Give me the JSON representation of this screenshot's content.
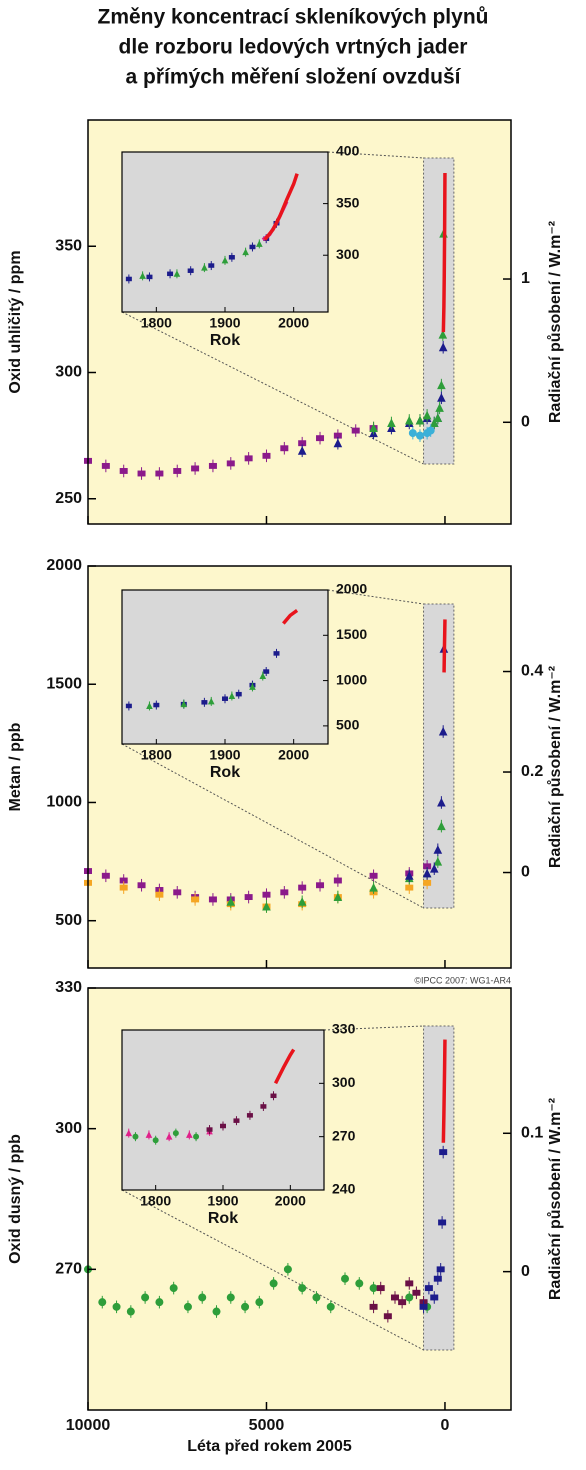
{
  "title": [
    "Změny koncentrací skleníkových plynů",
    "dle rozboru ledových vrtných jader",
    "a přímých měření složení ovzduší"
  ],
  "chart_data": [
    {
      "type": "scatter",
      "ylabel": "Oxid uhličitý  /  ppm",
      "y2label": "Radiační působení  /  W.m⁻²",
      "xlim": [
        10000,
        -1850
      ],
      "xticks": [
        10000,
        5000,
        0
      ],
      "ylim": [
        240,
        400
      ],
      "yticks": [
        250,
        300,
        350
      ],
      "y2lim": [
        -0.71,
        2.11
      ],
      "y2ticks": [
        0,
        1
      ],
      "series": [
        {
          "color": "#8b1a8b",
          "marker": "square",
          "x": [
            10000,
            9500,
            9000,
            8500,
            8000,
            7500,
            7000,
            6500,
            6000,
            5500,
            5000,
            4500,
            4000,
            3500,
            3000,
            2500,
            2000
          ],
          "values": [
            265,
            263,
            261,
            260,
            260,
            261,
            262,
            263,
            264,
            266,
            267,
            270,
            272,
            274,
            275,
            277,
            278
          ]
        },
        {
          "color": "#1c1c8c",
          "marker": "triangle",
          "x": [
            4000,
            3000,
            2000,
            1500,
            1000,
            700,
            500,
            300,
            200,
            100,
            50
          ],
          "values": [
            269,
            272,
            276,
            278,
            280,
            281,
            282,
            280,
            282,
            290,
            310
          ]
        },
        {
          "color": "#2e9e3a",
          "marker": "triangle",
          "x": [
            2000,
            1500,
            1000,
            700,
            500,
            300,
            200,
            150,
            100,
            60,
            40
          ],
          "values": [
            278,
            280,
            281,
            281,
            283,
            280,
            282,
            286,
            295,
            315,
            355
          ]
        },
        {
          "color": "#3ab0d8",
          "marker": "circle",
          "x": [
            900,
            700,
            500,
            400
          ],
          "values": [
            276,
            275,
            276,
            277
          ]
        },
        {
          "color": "#e8141c",
          "marker": "line",
          "x": [
            45,
            30,
            20,
            10,
            0
          ],
          "values": [
            316,
            326,
            338,
            355,
            379
          ]
        }
      ],
      "inset": {
        "xlabel": "Rok",
        "xlim": [
          1750,
          2050
        ],
        "xticks": [
          1800,
          1900,
          2000
        ],
        "ylim": [
          245,
          400
        ],
        "yticks": [
          300,
          350,
          400
        ],
        "series": [
          {
            "color": "#1c1c8c",
            "marker": "square",
            "x": [
              1760,
              1790,
              1820,
              1850,
              1880,
              1910,
              1940,
              1960,
              1975
            ],
            "values": [
              277,
              279,
              282,
              285,
              290,
              298,
              308,
              316,
              331
            ]
          },
          {
            "color": "#2e9e3a",
            "marker": "triangle",
            "x": [
              1780,
              1830,
              1870,
              1900,
              1930,
              1950
            ],
            "values": [
              280,
              282,
              288,
              295,
              303,
              311
            ]
          },
          {
            "color": "#e0208a",
            "marker": "line",
            "x": [
              1955,
              1965,
              1975,
              1985,
              1990
            ],
            "values": [
              315,
              320,
              331,
              345,
              352
            ]
          },
          {
            "color": "#e8141c",
            "marker": "line",
            "x": [
              1958,
              1970,
              1980,
              1990,
              2000,
              2005
            ],
            "values": [
              315,
              325,
              338,
              354,
              369,
              379
            ]
          }
        ]
      }
    },
    {
      "type": "scatter",
      "ylabel": "Metan  /  ppb",
      "y2label": "Radiační působení  /  W.m⁻²",
      "note": "©IPCC 2007: WG1-AR4",
      "xlim": [
        10000,
        -1850
      ],
      "xticks": [
        10000,
        5000,
        0
      ],
      "ylim": [
        300,
        2000
      ],
      "yticks": [
        500,
        1000,
        1500,
        2000
      ],
      "y2lim": [
        -0.19,
        0.61
      ],
      "y2ticks": [
        0,
        0.2,
        0.4
      ],
      "series": [
        {
          "color": "#8b1a8b",
          "marker": "square",
          "x": [
            10000,
            9500,
            9000,
            8500,
            8000,
            7500,
            7000,
            6500,
            6000,
            5500,
            5000,
            4500,
            4000,
            3500,
            3000,
            2000,
            1000,
            500
          ],
          "values": [
            710,
            690,
            670,
            650,
            630,
            620,
            600,
            590,
            590,
            600,
            610,
            620,
            640,
            650,
            670,
            690,
            700,
            730
          ]
        },
        {
          "color": "#f5a623",
          "marker": "square",
          "x": [
            10000,
            9000,
            8000,
            7000,
            6000,
            5000,
            4000,
            3000,
            2000,
            1000,
            500
          ],
          "values": [
            660,
            640,
            610,
            590,
            570,
            560,
            570,
            600,
            620,
            640,
            660
          ]
        },
        {
          "color": "#2e9e3a",
          "marker": "triangle",
          "x": [
            6000,
            5000,
            4000,
            3000,
            2000,
            1000,
            500,
            200,
            100
          ],
          "values": [
            580,
            560,
            580,
            600,
            640,
            680,
            700,
            750,
            900
          ]
        },
        {
          "color": "#1c1c8c",
          "marker": "triangle",
          "x": [
            1000,
            500,
            300,
            200,
            100,
            50,
            30
          ],
          "values": [
            690,
            700,
            720,
            800,
            1000,
            1300,
            1650
          ]
        },
        {
          "color": "#e8141c",
          "marker": "line",
          "x": [
            25,
            15,
            5,
            0
          ],
          "values": [
            1550,
            1650,
            1730,
            1774
          ]
        }
      ],
      "inset": {
        "xlabel": "Rok",
        "xlim": [
          1750,
          2050
        ],
        "xticks": [
          1800,
          1900,
          2000
        ],
        "ylim": [
          300,
          2000
        ],
        "yticks": [
          500,
          1000,
          1500,
          2000
        ],
        "series": [
          {
            "color": "#1c1c8c",
            "marker": "square",
            "x": [
              1760,
              1800,
              1840,
              1870,
              1900,
              1920,
              1940,
              1960,
              1975
            ],
            "values": [
              720,
              730,
              740,
              760,
              800,
              850,
              950,
              1100,
              1300
            ]
          },
          {
            "color": "#2e9e3a",
            "marker": "triangle",
            "x": [
              1790,
              1840,
              1880,
              1910,
              1940,
              1955
            ],
            "values": [
              720,
              740,
              770,
              830,
              930,
              1050
            ]
          },
          {
            "color": "#e8141c",
            "marker": "line",
            "x": [
              1985,
              1995,
              2005
            ],
            "values": [
              1630,
              1720,
              1774
            ]
          }
        ]
      }
    },
    {
      "type": "scatter",
      "ylabel": "Oxid dusný  /  ppb",
      "y2label": "Radiační působení  /  W.m⁻²",
      "xlabel": "Léta před rokem 2005",
      "xlim": [
        10000,
        -1850
      ],
      "xticks": [
        10000,
        5000,
        0
      ],
      "ylim": [
        240,
        330
      ],
      "yticks": [
        270,
        300,
        330
      ],
      "y2lim": [
        -0.1,
        0.205
      ],
      "y2ticks": [
        0,
        0.1
      ],
      "series": [
        {
          "color": "#2e9e3a",
          "marker": "circle",
          "x": [
            10000,
            9600,
            9200,
            8800,
            8400,
            8000,
            7600,
            7200,
            6800,
            6400,
            6000,
            5600,
            5200,
            4800,
            4400,
            4000,
            3600,
            3200,
            2800,
            2400,
            2000,
            1000,
            500
          ],
          "values": [
            270,
            263,
            262,
            261,
            264,
            263,
            266,
            262,
            264,
            261,
            264,
            262,
            263,
            267,
            270,
            266,
            264,
            262,
            268,
            267,
            266,
            264,
            262
          ]
        },
        {
          "color": "#6b1046",
          "marker": "square",
          "x": [
            2000,
            1800,
            1600,
            1400,
            1200,
            1000,
            800,
            600
          ],
          "values": [
            262,
            266,
            260,
            264,
            263,
            267,
            265,
            263
          ]
        },
        {
          "color": "#1c1c8c",
          "marker": "square",
          "x": [
            600,
            450,
            300,
            200,
            120,
            80,
            50
          ],
          "values": [
            262,
            266,
            264,
            268,
            270,
            280,
            295
          ]
        },
        {
          "color": "#e8141c",
          "marker": "line",
          "x": [
            45,
            30,
            20,
            10,
            0
          ],
          "values": [
            297,
            303,
            308,
            313,
            319
          ]
        }
      ],
      "inset": {
        "xlabel": "Rok",
        "xlim": [
          1750,
          2050
        ],
        "xticks": [
          1800,
          1900,
          2000
        ],
        "ylim": [
          240,
          330
        ],
        "yticks": [
          240,
          270,
          300,
          330
        ],
        "series": [
          {
            "color": "#e0208a",
            "marker": "triangle",
            "x": [
              1760,
              1790,
              1820,
              1850,
              1880
            ],
            "values": [
              272,
              271,
              270,
              271,
              273
            ]
          },
          {
            "color": "#2e9e3a",
            "marker": "circle",
            "x": [
              1770,
              1800,
              1830,
              1860
            ],
            "values": [
              270,
              268,
              272,
              270
            ]
          },
          {
            "color": "#6b1046",
            "marker": "square",
            "x": [
              1880,
              1900,
              1920,
              1940,
              1960,
              1975
            ],
            "values": [
              274,
              276,
              279,
              282,
              287,
              293
            ]
          },
          {
            "color": "#e8141c",
            "marker": "line",
            "x": [
              1978,
              1990,
              2000,
              2005
            ],
            "values": [
              300,
              309,
              316,
              319
            ]
          }
        ]
      }
    }
  ]
}
